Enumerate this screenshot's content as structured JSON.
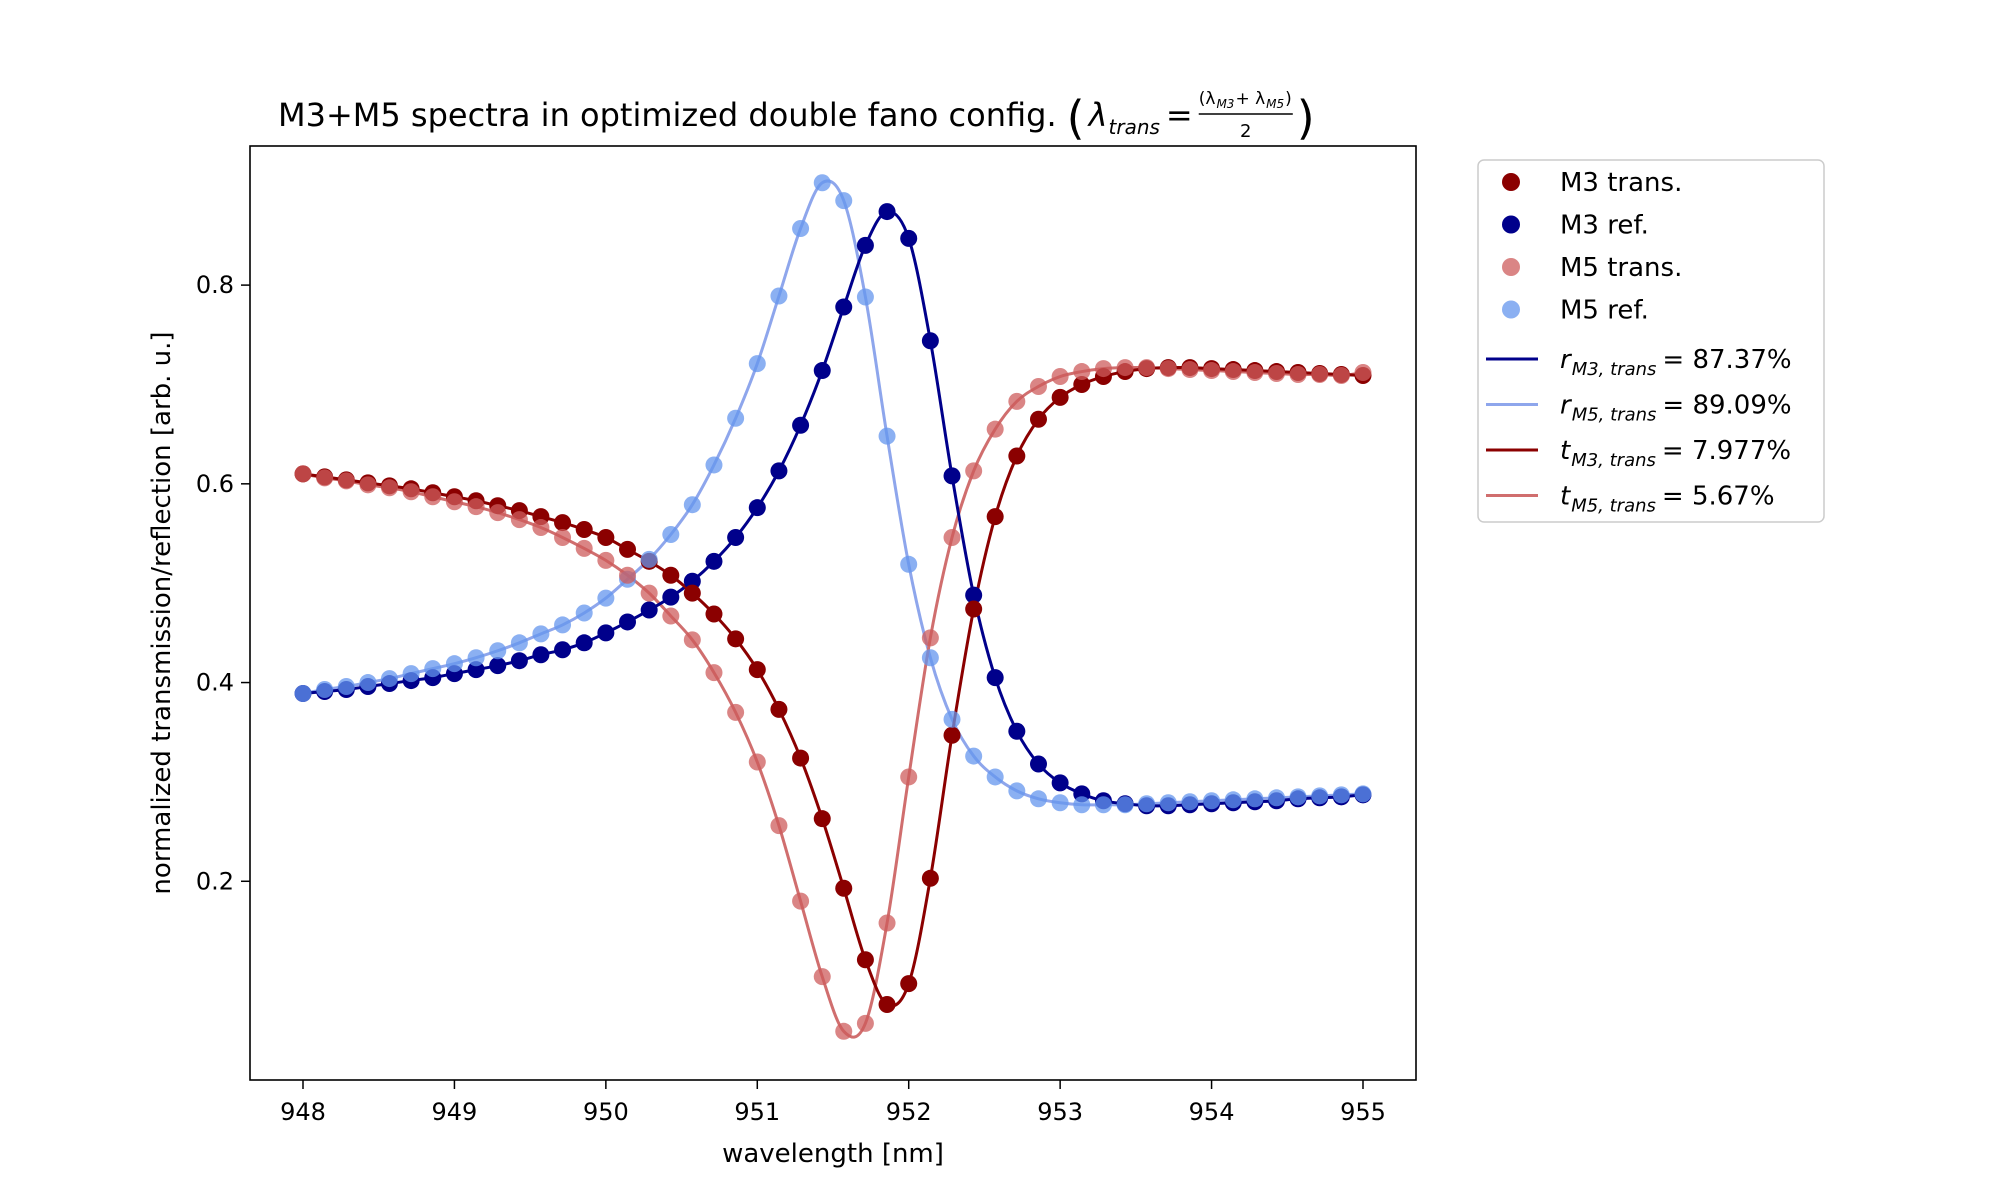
{
  "chart_data": {
    "type": "scatter",
    "title": "M3+M5 spectra in optimized double fano config.",
    "title_math": {
      "lhs": "λ",
      "lhs_sub": "trans",
      "eq": "=",
      "numerator": "(λ",
      "num_sub1": "M3",
      "num_mid": "+ λ",
      "num_sub2": "M5",
      "num_end": ")",
      "denominator": "2"
    },
    "xlabel": "wavelength [nm]",
    "ylabel": "normalized transmission/reflection [arb. u.]",
    "xlim": [
      947.65,
      955.35
    ],
    "ylim": [
      0.0,
      0.94
    ],
    "x_ticks": [
      "948",
      "949",
      "950",
      "951",
      "952",
      "953",
      "954",
      "955"
    ],
    "y_ticks": [
      "0.2",
      "0.4",
      "0.6",
      "0.8"
    ],
    "grid": false,
    "legend_position": "outside-right",
    "colors": {
      "m3_trans": "#8b0000",
      "m3_ref": "#00008b",
      "m5_trans": "#cd5c5c",
      "m5_ref": "#6495ed",
      "r_m3_line": "#00008b",
      "r_m5_line": "#8ea6ec",
      "t_m3_line": "#8b0000",
      "t_m5_line": "#d06e6e"
    },
    "x": [
      948.0,
      948.143,
      948.286,
      948.429,
      948.571,
      948.714,
      948.857,
      949.0,
      949.143,
      949.286,
      949.429,
      949.571,
      949.714,
      949.857,
      950.0,
      950.143,
      950.286,
      950.429,
      950.571,
      950.714,
      950.857,
      951.0,
      951.143,
      951.286,
      951.429,
      951.571,
      951.714,
      951.857,
      952.0,
      952.143,
      952.286,
      952.429,
      952.571,
      952.714,
      952.857,
      953.0,
      953.143,
      953.286,
      953.429,
      953.571,
      953.714,
      953.857,
      954.0,
      954.143,
      954.286,
      954.429,
      954.571,
      954.714,
      954.857,
      955.0
    ],
    "series": [
      {
        "name": "M3 trans.",
        "values": [
          0.61,
          0.607,
          0.604,
          0.601,
          0.598,
          0.595,
          0.591,
          0.587,
          0.583,
          0.578,
          0.573,
          0.567,
          0.561,
          0.554,
          0.546,
          0.534,
          0.522,
          0.508,
          0.49,
          0.469,
          0.444,
          0.413,
          0.373,
          0.324,
          0.263,
          0.193,
          0.121,
          0.076,
          0.097,
          0.203,
          0.347,
          0.474,
          0.567,
          0.628,
          0.665,
          0.687,
          0.7,
          0.708,
          0.713,
          0.716,
          0.717,
          0.717,
          0.716,
          0.715,
          0.714,
          0.713,
          0.712,
          0.711,
          0.71,
          0.709
        ]
      },
      {
        "name": "M3 ref.",
        "values": [
          0.389,
          0.391,
          0.393,
          0.396,
          0.399,
          0.402,
          0.405,
          0.409,
          0.413,
          0.417,
          0.422,
          0.428,
          0.433,
          0.44,
          0.45,
          0.461,
          0.473,
          0.486,
          0.502,
          0.522,
          0.546,
          0.576,
          0.613,
          0.659,
          0.714,
          0.778,
          0.84,
          0.874,
          0.847,
          0.744,
          0.608,
          0.488,
          0.405,
          0.351,
          0.318,
          0.299,
          0.288,
          0.281,
          0.278,
          0.276,
          0.276,
          0.277,
          0.278,
          0.279,
          0.28,
          0.281,
          0.283,
          0.284,
          0.285,
          0.287
        ]
      },
      {
        "name": "M5 trans.",
        "values": [
          0.61,
          0.606,
          0.603,
          0.599,
          0.596,
          0.592,
          0.587,
          0.582,
          0.577,
          0.571,
          0.564,
          0.556,
          0.546,
          0.535,
          0.523,
          0.508,
          0.49,
          0.467,
          0.443,
          0.41,
          0.37,
          0.32,
          0.256,
          0.18,
          0.104,
          0.049,
          0.057,
          0.158,
          0.305,
          0.445,
          0.546,
          0.613,
          0.655,
          0.683,
          0.698,
          0.708,
          0.713,
          0.716,
          0.717,
          0.717,
          0.716,
          0.715,
          0.714,
          0.713,
          0.712,
          0.711,
          0.71,
          0.71,
          0.709,
          0.712
        ]
      },
      {
        "name": "M5 ref.",
        "values": [
          0.389,
          0.393,
          0.396,
          0.4,
          0.404,
          0.409,
          0.414,
          0.419,
          0.425,
          0.432,
          0.44,
          0.449,
          0.458,
          0.47,
          0.485,
          0.504,
          0.524,
          0.549,
          0.579,
          0.619,
          0.666,
          0.721,
          0.789,
          0.857,
          0.903,
          0.885,
          0.788,
          0.648,
          0.519,
          0.425,
          0.363,
          0.326,
          0.305,
          0.291,
          0.283,
          0.279,
          0.277,
          0.277,
          0.277,
          0.278,
          0.279,
          0.28,
          0.281,
          0.282,
          0.283,
          0.284,
          0.285,
          0.286,
          0.287,
          0.288
        ]
      }
    ],
    "fits": [
      {
        "var": "r",
        "sub": "M3, trans",
        "value_text": "= 87.37%"
      },
      {
        "var": "r",
        "sub": "M5, trans",
        "value_text": "= 89.09%"
      },
      {
        "var": "t",
        "sub": "M3, trans",
        "value_text": "= 7.977%"
      },
      {
        "var": "t",
        "sub": "M5, trans",
        "value_text": "= 5.67%"
      }
    ]
  }
}
